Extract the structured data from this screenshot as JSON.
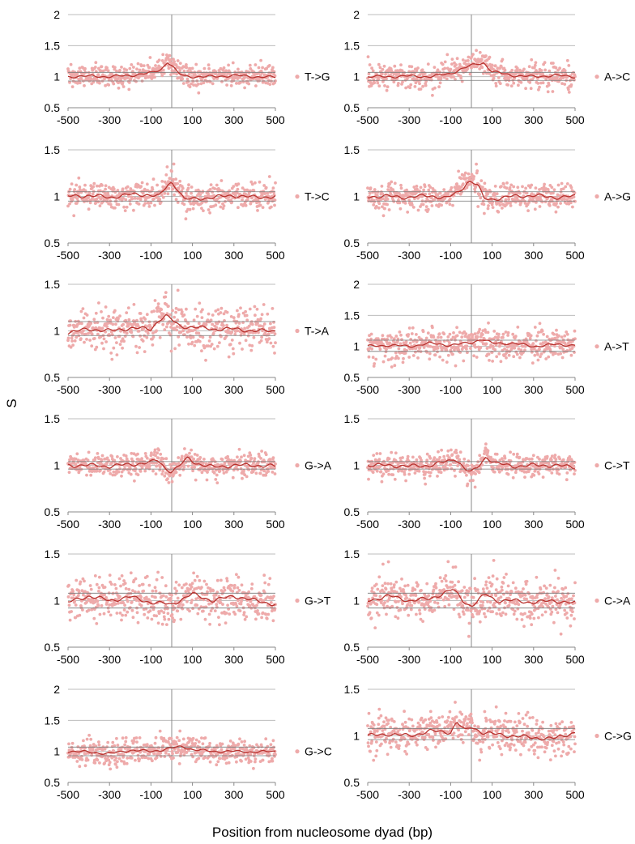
{
  "figure": {
    "ylabel": "S",
    "xlabel": "Position from nucleosome dyad (bp)"
  },
  "colors": {
    "points": "#eeaaaa",
    "smooth_line": "#b8322e",
    "grid": "#bdbdbd",
    "axis": "#888888",
    "threshold": "#777777"
  },
  "chart_data": [
    {
      "type": "scatter",
      "panel": "T->G",
      "legend": "T->G",
      "xlim": [
        -500,
        500
      ],
      "ylim": [
        0.5,
        2
      ],
      "xticks": [
        -500,
        -300,
        -100,
        100,
        300,
        500
      ],
      "yticks": [
        0.5,
        1,
        1.5,
        2
      ],
      "ytick_labels": [
        "0.5",
        "1",
        "1.5",
        "2"
      ],
      "noise": 0.09,
      "thresholds": [
        0.93,
        1.07
      ],
      "peaks": [
        {
          "x": -15,
          "amp": 0.22,
          "width": 55
        }
      ],
      "trend_x": [
        -500,
        -400,
        -300,
        -200,
        -100,
        -50,
        -20,
        0,
        30,
        60,
        100,
        200,
        300,
        400,
        500
      ],
      "trend_y": [
        1.0,
        1.01,
        1.0,
        1.02,
        1.06,
        1.12,
        1.24,
        1.18,
        1.06,
        1.01,
        1.0,
        1.0,
        1.02,
        1.0,
        0.99
      ]
    },
    {
      "type": "scatter",
      "panel": "A->C",
      "legend": "A->C",
      "xlim": [
        -500,
        500
      ],
      "ylim": [
        0.5,
        2
      ],
      "xticks": [
        -500,
        -300,
        -100,
        100,
        300,
        500
      ],
      "yticks": [
        0.5,
        1,
        1.5,
        2
      ],
      "ytick_labels": [
        "0.5",
        "1",
        "1.5",
        "2"
      ],
      "noise": 0.1,
      "thresholds": [
        0.94,
        1.07
      ],
      "peaks": [
        {
          "x": 20,
          "amp": 0.2,
          "width": 60
        }
      ],
      "trend_x": [
        -500,
        -400,
        -300,
        -200,
        -100,
        -50,
        0,
        30,
        60,
        100,
        200,
        300,
        400,
        500
      ],
      "trend_y": [
        1.0,
        1.0,
        1.01,
        1.0,
        1.05,
        1.12,
        1.18,
        1.21,
        1.22,
        1.08,
        1.02,
        1.0,
        1.02,
        1.0
      ]
    },
    {
      "type": "scatter",
      "panel": "T->C",
      "legend": "T->C",
      "xlim": [
        -500,
        500
      ],
      "ylim": [
        0.5,
        1.5
      ],
      "xticks": [
        -500,
        -300,
        -100,
        100,
        300,
        500
      ],
      "yticks": [
        0.5,
        1,
        1.5
      ],
      "ytick_labels": [
        "0.5",
        "1",
        "1.5"
      ],
      "noise": 0.07,
      "thresholds": [
        0.95,
        1.05
      ],
      "peaks": [
        {
          "x": 0,
          "amp": 0.15,
          "width": 55
        }
      ],
      "trend_x": [
        -500,
        -400,
        -300,
        -200,
        -120,
        -60,
        -20,
        0,
        30,
        60,
        100,
        200,
        300,
        400,
        500
      ],
      "trend_y": [
        1.0,
        1.01,
        0.99,
        1.02,
        1.02,
        1.0,
        1.12,
        1.15,
        1.08,
        0.97,
        0.97,
        0.99,
        1.01,
        0.99,
        1.0
      ]
    },
    {
      "type": "scatter",
      "panel": "A->G",
      "legend": "A->G",
      "xlim": [
        -500,
        500
      ],
      "ylim": [
        0.5,
        1.5
      ],
      "xticks": [
        -500,
        -300,
        -100,
        100,
        300,
        500
      ],
      "yticks": [
        0.5,
        1,
        1.5
      ],
      "ytick_labels": [
        "0.5",
        "1",
        "1.5"
      ],
      "noise": 0.07,
      "thresholds": [
        0.95,
        1.05
      ],
      "peaks": [
        {
          "x": -10,
          "amp": 0.16,
          "width": 55
        }
      ],
      "trend_x": [
        -500,
        -400,
        -300,
        -200,
        -120,
        -60,
        -20,
        0,
        30,
        60,
        100,
        200,
        300,
        400,
        500
      ],
      "trend_y": [
        1.0,
        1.0,
        0.99,
        1.01,
        0.98,
        1.05,
        1.15,
        1.16,
        1.12,
        0.98,
        0.97,
        1.0,
        1.01,
        0.99,
        1.0
      ]
    },
    {
      "type": "scatter",
      "panel": "T->A",
      "legend": "T->A",
      "xlim": [
        -500,
        500
      ],
      "ylim": [
        0.5,
        1.5
      ],
      "xticks": [
        -500,
        -300,
        -100,
        100,
        300,
        500
      ],
      "yticks": [
        0.5,
        1,
        1.5
      ],
      "ytick_labels": [
        "0.5",
        "1",
        "1.5"
      ],
      "noise": 0.12,
      "thresholds": [
        0.95,
        1.1
      ],
      "peaks": [
        {
          "x": -40,
          "amp": 0.15,
          "width": 55
        }
      ],
      "trend_x": [
        -500,
        -400,
        -300,
        -200,
        -100,
        -60,
        -30,
        0,
        40,
        100,
        200,
        300,
        400,
        500
      ],
      "trend_y": [
        0.98,
        1.02,
        1.0,
        1.03,
        1.02,
        1.12,
        1.16,
        1.12,
        1.05,
        1.04,
        1.02,
        1.02,
        1.0,
        1.0
      ]
    },
    {
      "type": "scatter",
      "panel": "A->T",
      "legend": "A->T",
      "xlim": [
        -500,
        500
      ],
      "ylim": [
        0.5,
        2
      ],
      "xticks": [
        -500,
        -300,
        -100,
        100,
        300,
        500
      ],
      "yticks": [
        0.5,
        1,
        1.5,
        2
      ],
      "ytick_labels": [
        "0.5",
        "1",
        "1.5",
        "2"
      ],
      "noise": 0.12,
      "thresholds": [
        0.92,
        1.1
      ],
      "peaks": [
        {
          "x": 50,
          "amp": 0.08,
          "width": 40
        }
      ],
      "trend_x": [
        -500,
        -400,
        -300,
        -200,
        -100,
        0,
        50,
        100,
        200,
        300,
        400,
        500
      ],
      "trend_y": [
        1.0,
        1.02,
        1.0,
        1.05,
        1.02,
        1.06,
        1.12,
        1.05,
        1.05,
        1.0,
        1.03,
        1.02
      ]
    },
    {
      "type": "scatter",
      "panel": "G->A",
      "legend": "G->A",
      "xlim": [
        -500,
        500
      ],
      "ylim": [
        0.5,
        1.5
      ],
      "xticks": [
        -500,
        -300,
        -100,
        100,
        300,
        500
      ],
      "yticks": [
        0.5,
        1,
        1.5
      ],
      "ytick_labels": [
        "0.5",
        "1",
        "1.5"
      ],
      "noise": 0.06,
      "thresholds": [
        0.96,
        1.04
      ],
      "peaks": [
        {
          "x": -70,
          "amp": 0.06,
          "width": 30
        },
        {
          "x": 80,
          "amp": 0.08,
          "width": 30
        }
      ],
      "trend_x": [
        -500,
        -400,
        -300,
        -200,
        -100,
        -70,
        -30,
        0,
        30,
        80,
        120,
        200,
        300,
        400,
        500
      ],
      "trend_y": [
        1.0,
        1.0,
        0.99,
        1.01,
        1.03,
        1.06,
        0.97,
        0.93,
        0.98,
        1.08,
        1.02,
        0.98,
        1.0,
        1.0,
        0.99
      ]
    },
    {
      "type": "scatter",
      "panel": "C->T",
      "legend": "C->T",
      "xlim": [
        -500,
        500
      ],
      "ylim": [
        0.5,
        1.5
      ],
      "xticks": [
        -500,
        -300,
        -100,
        100,
        300,
        500
      ],
      "yticks": [
        0.5,
        1,
        1.5
      ],
      "ytick_labels": [
        "0.5",
        "1",
        "1.5"
      ],
      "noise": 0.06,
      "thresholds": [
        0.96,
        1.04
      ],
      "peaks": [
        {
          "x": -80,
          "amp": 0.08,
          "width": 30
        },
        {
          "x": 70,
          "amp": 0.1,
          "width": 30
        }
      ],
      "trend_x": [
        -500,
        -400,
        -300,
        -200,
        -100,
        -80,
        -30,
        0,
        30,
        70,
        120,
        200,
        300,
        400,
        500
      ],
      "trend_y": [
        1.0,
        1.0,
        0.99,
        1.0,
        1.05,
        1.08,
        0.96,
        0.92,
        0.98,
        1.09,
        1.02,
        0.99,
        1.0,
        1.0,
        0.98
      ]
    },
    {
      "type": "scatter",
      "panel": "G->T",
      "legend": "G->T",
      "xlim": [
        -500,
        500
      ],
      "ylim": [
        0.5,
        1.5
      ],
      "xticks": [
        -500,
        -300,
        -100,
        100,
        300,
        500
      ],
      "yticks": [
        0.5,
        1,
        1.5
      ],
      "ytick_labels": [
        "0.5",
        "1",
        "1.5"
      ],
      "noise": 0.11,
      "thresholds": [
        0.92,
        1.08
      ],
      "peaks": [
        {
          "x": 100,
          "amp": 0.06,
          "width": 40
        }
      ],
      "trend_x": [
        -500,
        -400,
        -300,
        -200,
        -100,
        0,
        100,
        200,
        300,
        400,
        500
      ],
      "trend_y": [
        0.98,
        1.05,
        1.0,
        1.04,
        0.98,
        0.96,
        1.07,
        1.0,
        1.05,
        1.0,
        0.96
      ]
    },
    {
      "type": "scatter",
      "panel": "C->A",
      "legend": "C->A",
      "xlim": [
        -500,
        500
      ],
      "ylim": [
        0.5,
        1.5
      ],
      "xticks": [
        -500,
        -300,
        -100,
        100,
        300,
        500
      ],
      "yticks": [
        0.5,
        1,
        1.5
      ],
      "ytick_labels": [
        "0.5",
        "1",
        "1.5"
      ],
      "noise": 0.11,
      "thresholds": [
        0.92,
        1.08
      ],
      "peaks": [
        {
          "x": -90,
          "amp": 0.07,
          "width": 30
        },
        {
          "x": 70,
          "amp": 0.06,
          "width": 30
        }
      ],
      "trend_x": [
        -500,
        -400,
        -300,
        -200,
        -90,
        -30,
        0,
        70,
        120,
        200,
        300,
        400,
        500
      ],
      "trend_y": [
        1.0,
        1.05,
        1.0,
        1.02,
        1.12,
        0.98,
        0.94,
        1.07,
        1.0,
        1.0,
        0.98,
        1.0,
        0.97
      ]
    },
    {
      "type": "scatter",
      "panel": "G->C",
      "legend": "G->C",
      "xlim": [
        -500,
        500
      ],
      "ylim": [
        0.5,
        2
      ],
      "xticks": [
        -500,
        -300,
        -100,
        100,
        300,
        500
      ],
      "yticks": [
        0.5,
        1,
        1.5,
        2
      ],
      "ytick_labels": [
        "0.5",
        "1",
        "1.5",
        "2"
      ],
      "noise": 0.1,
      "thresholds": [
        0.93,
        1.07
      ],
      "peaks": [
        {
          "x": 20,
          "amp": 0.08,
          "width": 60
        }
      ],
      "trend_x": [
        -500,
        -400,
        -300,
        -200,
        -100,
        0,
        50,
        100,
        200,
        300,
        400,
        500
      ],
      "trend_y": [
        1.0,
        0.99,
        0.96,
        1.02,
        1.0,
        1.05,
        1.08,
        1.03,
        1.0,
        1.0,
        0.99,
        1.0
      ]
    },
    {
      "type": "scatter",
      "panel": "C->G",
      "legend": "C->G",
      "xlim": [
        -500,
        500
      ],
      "ylim": [
        0.5,
        1.5
      ],
      "xticks": [
        -500,
        -300,
        -100,
        100,
        300,
        500
      ],
      "yticks": [
        0.5,
        1,
        1.5
      ],
      "ytick_labels": [
        "0.5",
        "1",
        "1.5"
      ],
      "noise": 0.11,
      "thresholds": [
        0.96,
        1.08
      ],
      "peaks": [
        {
          "x": -80,
          "amp": 0.08,
          "width": 30
        },
        {
          "x": 0,
          "amp": 0.06,
          "width": 30
        }
      ],
      "trend_x": [
        -500,
        -400,
        -300,
        -200,
        -100,
        -70,
        -30,
        0,
        50,
        100,
        200,
        300,
        400,
        500
      ],
      "trend_y": [
        1.0,
        1.02,
        1.0,
        1.05,
        1.04,
        1.15,
        1.05,
        1.1,
        1.04,
        1.02,
        1.0,
        0.98,
        0.97,
        1.04
      ]
    }
  ]
}
